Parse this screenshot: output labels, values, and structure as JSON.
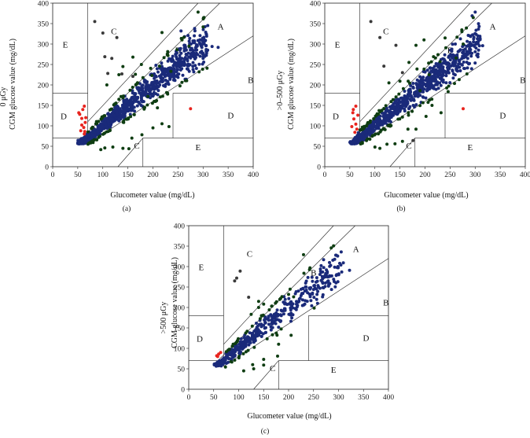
{
  "figure": {
    "captions": [
      "(a)",
      "(b)",
      "(c)"
    ]
  },
  "colors": {
    "zone_a": "#1a2a7a",
    "zone_b": "#0e3d12",
    "zone_c": "#3a3a3a",
    "zone_d": "#e8241e",
    "lines": "#222222"
  },
  "chart_data": [
    {
      "type": "scatter",
      "panel": "(a)",
      "dose_label": "0 μGy",
      "xlabel": "Glucometer value (mg/dL)",
      "ylabel": "CGM glucose value (mg/dL)",
      "xlim": [
        0,
        400
      ],
      "ylim": [
        0,
        400
      ],
      "xticks": [
        0,
        50,
        100,
        150,
        200,
        250,
        300,
        350,
        400
      ],
      "yticks": [
        0,
        50,
        100,
        150,
        200,
        250,
        300,
        350,
        400
      ],
      "zones": [
        "A",
        "B",
        "B",
        "C",
        "C",
        "D",
        "D",
        "E",
        "E"
      ],
      "series": [
        {
          "name": "Zone A",
          "color": "#1a2a7a",
          "density": 900,
          "points": [
            [
              256,
              332
            ],
            [
              263,
              318
            ],
            [
              270,
              321
            ],
            [
              276,
              300
            ],
            [
              288,
              295
            ],
            [
              300,
              265
            ],
            [
              318,
              294
            ],
            [
              330,
              292
            ],
            [
              206,
              248
            ],
            [
              230,
              258
            ],
            [
              248,
              238
            ],
            [
              262,
              258
            ],
            [
              280,
              238
            ],
            [
              245,
              275
            ],
            [
              236,
              262
            ],
            [
              299,
              251
            ]
          ]
        },
        {
          "name": "Zone B",
          "color": "#0e3d12",
          "density": 520,
          "points": [
            [
              272,
              295
            ],
            [
              290,
              378
            ],
            [
              300,
              342
            ],
            [
              230,
              272
            ],
            [
              213,
              246
            ],
            [
              236,
              233
            ],
            [
              248,
              286
            ],
            [
              218,
              328
            ],
            [
              160,
              268
            ],
            [
              177,
              250
            ],
            [
              198,
              223
            ],
            [
              165,
              226
            ],
            [
              190,
              172
            ],
            [
              209,
              144
            ],
            [
              200,
              95
            ],
            [
              218,
              105
            ],
            [
              232,
              98
            ],
            [
              178,
              78
            ],
            [
              158,
              70
            ],
            [
              140,
              45
            ],
            [
              152,
              44
            ],
            [
              120,
              48
            ],
            [
              104,
              46
            ],
            [
              96,
              42
            ],
            [
              108,
              200
            ],
            [
              132,
              225
            ],
            [
              140,
              245
            ]
          ]
        },
        {
          "name": "Zone C",
          "color": "#3a3a3a",
          "points": [
            [
              84,
              355
            ],
            [
              100,
              327
            ],
            [
              128,
              316
            ],
            [
              104,
              269
            ],
            [
              118,
              265
            ],
            [
              110,
              228
            ],
            [
              138,
              227
            ],
            [
              160,
              221
            ]
          ]
        },
        {
          "name": "Zone D",
          "color": "#e8241e",
          "points": [
            [
              275,
              142
            ],
            [
              63,
              148
            ],
            [
              54,
              128
            ],
            [
              58,
              102
            ],
            [
              56,
              88
            ],
            [
              64,
              86
            ],
            [
              66,
              120
            ],
            [
              62,
              96
            ],
            [
              52,
              132
            ],
            [
              60,
              140
            ],
            [
              65,
              108
            ],
            [
              58,
              118
            ],
            [
              63,
              80
            ]
          ]
        }
      ]
    },
    {
      "type": "scatter",
      "panel": "(b)",
      "dose_label": ">0–500 μGy",
      "xlabel": "Glucometer value (mg/dL)",
      "ylabel": "CGM glucose value (mg/dL)",
      "xlim": [
        0,
        400
      ],
      "ylim": [
        0,
        400
      ],
      "xticks": [
        0,
        50,
        100,
        150,
        200,
        250,
        300,
        350,
        400
      ],
      "yticks": [
        0,
        50,
        100,
        150,
        200,
        250,
        300,
        350,
        400
      ],
      "zones": [
        "A",
        "B",
        "B",
        "C",
        "C",
        "D",
        "D",
        "E",
        "E"
      ],
      "series": [
        {
          "name": "Zone A",
          "color": "#1a2a7a",
          "density": 820,
          "points": [
            [
              290,
              320
            ],
            [
              302,
              300
            ],
            [
              315,
              296
            ],
            [
              260,
              270
            ],
            [
              278,
              276
            ],
            [
              232,
              262
            ],
            [
              248,
              252
            ],
            [
              205,
              236
            ],
            [
              222,
              236
            ],
            [
              190,
              220
            ],
            [
              294,
              369
            ],
            [
              300,
              378
            ]
          ]
        },
        {
          "name": "Zone B",
          "color": "#0e3d12",
          "density": 500,
          "points": [
            [
              182,
              297
            ],
            [
              198,
              310
            ],
            [
              240,
              315
            ],
            [
              276,
              300
            ],
            [
              230,
              257
            ],
            [
              262,
              266
            ],
            [
              168,
              255
            ],
            [
              184,
              239
            ],
            [
              208,
              225
            ],
            [
              190,
              186
            ],
            [
              214,
              150
            ],
            [
              202,
              123
            ],
            [
              232,
              132
            ],
            [
              182,
              92
            ],
            [
              166,
              92
            ],
            [
              155,
              62
            ],
            [
              140,
              56
            ],
            [
              124,
              55
            ],
            [
              100,
              48
            ],
            [
              110,
              45
            ],
            [
              128,
              205
            ],
            [
              150,
              209
            ]
          ]
        },
        {
          "name": "Zone C",
          "color": "#3a3a3a",
          "points": [
            [
              92,
              355
            ],
            [
              110,
              316
            ],
            [
              142,
              297
            ],
            [
              118,
              246
            ],
            [
              155,
              230
            ],
            [
              176,
              64
            ]
          ]
        },
        {
          "name": "Zone D",
          "color": "#e8241e",
          "points": [
            [
              276,
              142
            ],
            [
              62,
              148
            ],
            [
              56,
              132
            ],
            [
              58,
              117
            ],
            [
              54,
              98
            ],
            [
              64,
              92
            ],
            [
              60,
              84
            ],
            [
              66,
              126
            ],
            [
              57,
              140
            ],
            [
              62,
              104
            ]
          ]
        }
      ]
    },
    {
      "type": "scatter",
      "panel": "(c)",
      "dose_label": ">500 μGy",
      "xlabel": "Glucometer value (mg/dL)",
      "ylabel": "CGM glucose value (mg/dL)",
      "xlim": [
        0,
        400
      ],
      "ylim": [
        0,
        400
      ],
      "xticks": [
        0,
        50,
        100,
        150,
        200,
        250,
        300,
        350,
        400
      ],
      "yticks": [
        0,
        50,
        100,
        150,
        200,
        250,
        300,
        350,
        400
      ],
      "zones": [
        "A",
        "B",
        "B",
        "C",
        "C",
        "D",
        "D",
        "E",
        "E"
      ],
      "series": [
        {
          "name": "Zone A",
          "color": "#1a2a7a",
          "density": 420,
          "points": [
            [
              322,
              291
            ],
            [
              295,
              260
            ],
            [
              268,
              275
            ],
            [
              250,
              244
            ],
            [
              270,
              248
            ],
            [
              258,
              210
            ],
            [
              238,
              236
            ],
            [
              205,
              214
            ],
            [
              225,
              229
            ],
            [
              218,
              205
            ],
            [
              286,
              244
            ]
          ]
        },
        {
          "name": "Zone B",
          "color": "#0e3d12",
          "density": 230,
          "points": [
            [
              230,
              329
            ],
            [
              210,
              226
            ],
            [
              200,
              232
            ],
            [
              205,
              132
            ],
            [
              180,
              110
            ],
            [
              178,
              81
            ],
            [
              150,
              73
            ],
            [
              150,
              59
            ],
            [
              130,
              50
            ],
            [
              110,
              45
            ],
            [
              128,
              60
            ],
            [
              125,
              183
            ],
            [
              140,
              200
            ],
            [
              150,
              208
            ],
            [
              140,
              215
            ]
          ]
        },
        {
          "name": "Zone C",
          "color": "#3a3a3a",
          "points": [
            [
              92,
              265
            ],
            [
              96,
              272
            ],
            [
              103,
              289
            ],
            [
              120,
              225
            ]
          ]
        },
        {
          "name": "Zone D",
          "color": "#e8241e",
          "points": [
            [
              60,
              86
            ],
            [
              56,
              82
            ],
            [
              64,
              90
            ],
            [
              58,
              80
            ]
          ]
        }
      ]
    }
  ]
}
